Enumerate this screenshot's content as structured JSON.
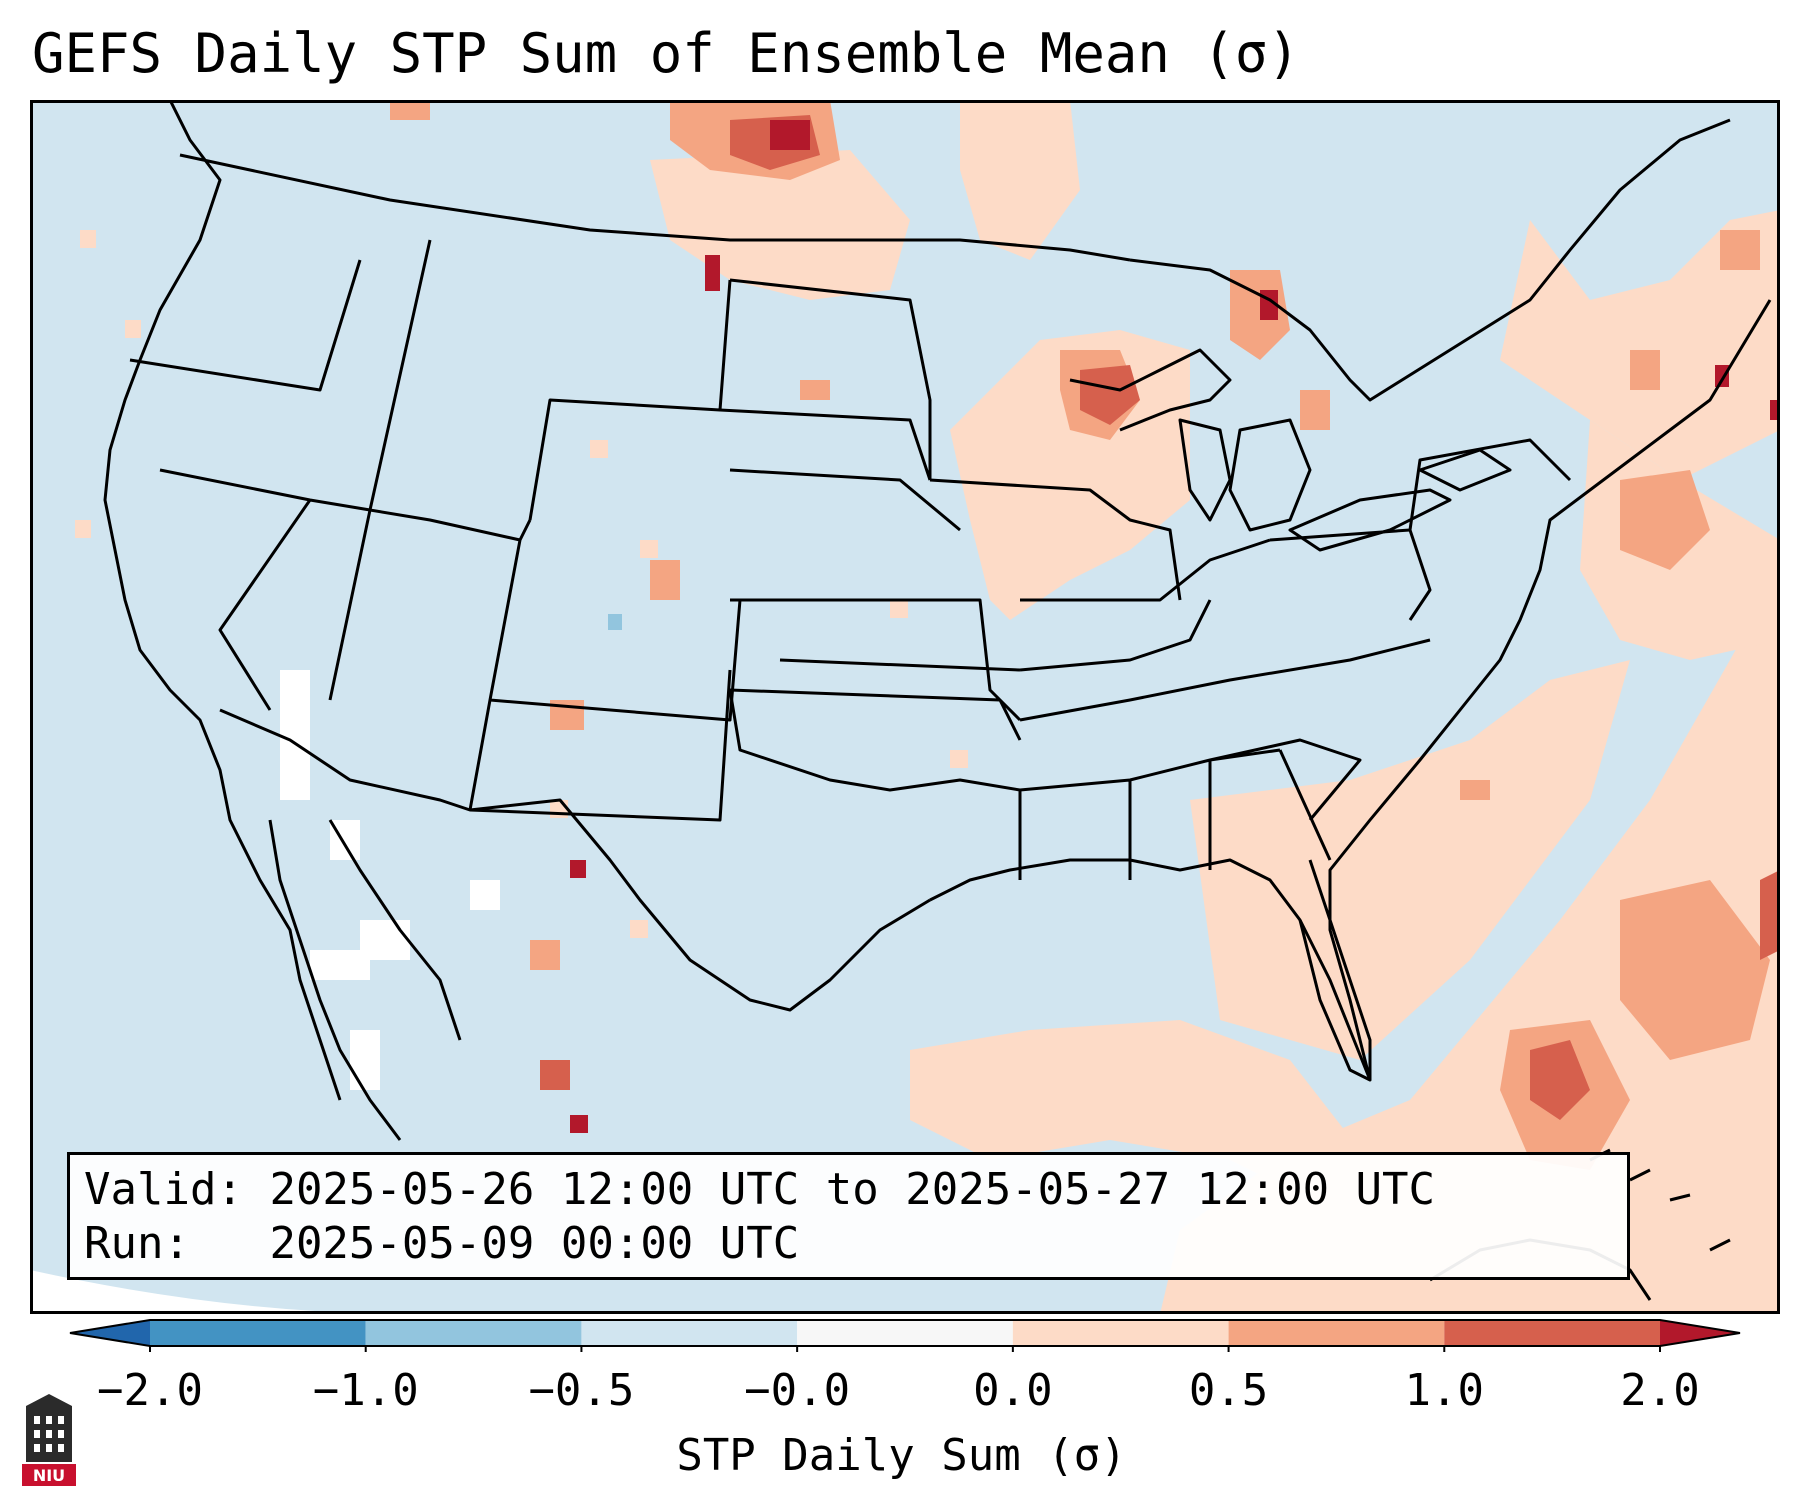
{
  "title": "GEFS Daily STP Sum of Ensemble Mean (σ)",
  "info": {
    "valid_label": "Valid:",
    "valid_value": "2025-05-26 12:00 UTC to 2025-05-27 12:00 UTC",
    "run_label": "Run:",
    "run_value": "2025-05-09 00:00 UTC"
  },
  "colorbar": {
    "label": "STP Daily Sum (σ)",
    "ticks": [
      "−2.0",
      "−1.0",
      "−0.5",
      "−0.0",
      "0.0",
      "0.5",
      "1.0",
      "2.0"
    ],
    "bins": [
      {
        "range": "< -2.0",
        "color": "#2166ac"
      },
      {
        "range": "-2.0 to -1.0",
        "color": "#4393c3"
      },
      {
        "range": "-1.0 to -0.5",
        "color": "#92c5de"
      },
      {
        "range": "-0.5 to -0.0",
        "color": "#d1e5f0"
      },
      {
        "range": "-0.0 to 0.0",
        "color": "#f7f7f7"
      },
      {
        "range": "0.0 to 0.5",
        "color": "#fddbc7"
      },
      {
        "range": "0.5 to 1.0",
        "color": "#f4a582"
      },
      {
        "range": "1.0 to 2.0",
        "color": "#d6604d"
      },
      {
        "range": "> 2.0",
        "color": "#b2182b"
      }
    ]
  },
  "colors": {
    "background": "#d1e5f0",
    "low": "#fddbc7",
    "mid": "#f4a582",
    "high": "#d6604d",
    "max": "#b2182b",
    "neutral": "#f7f7f7",
    "neg": "#92c5de",
    "borders": "#000000"
  },
  "logo": {
    "text": "NIU",
    "name": "niu-logo"
  }
}
